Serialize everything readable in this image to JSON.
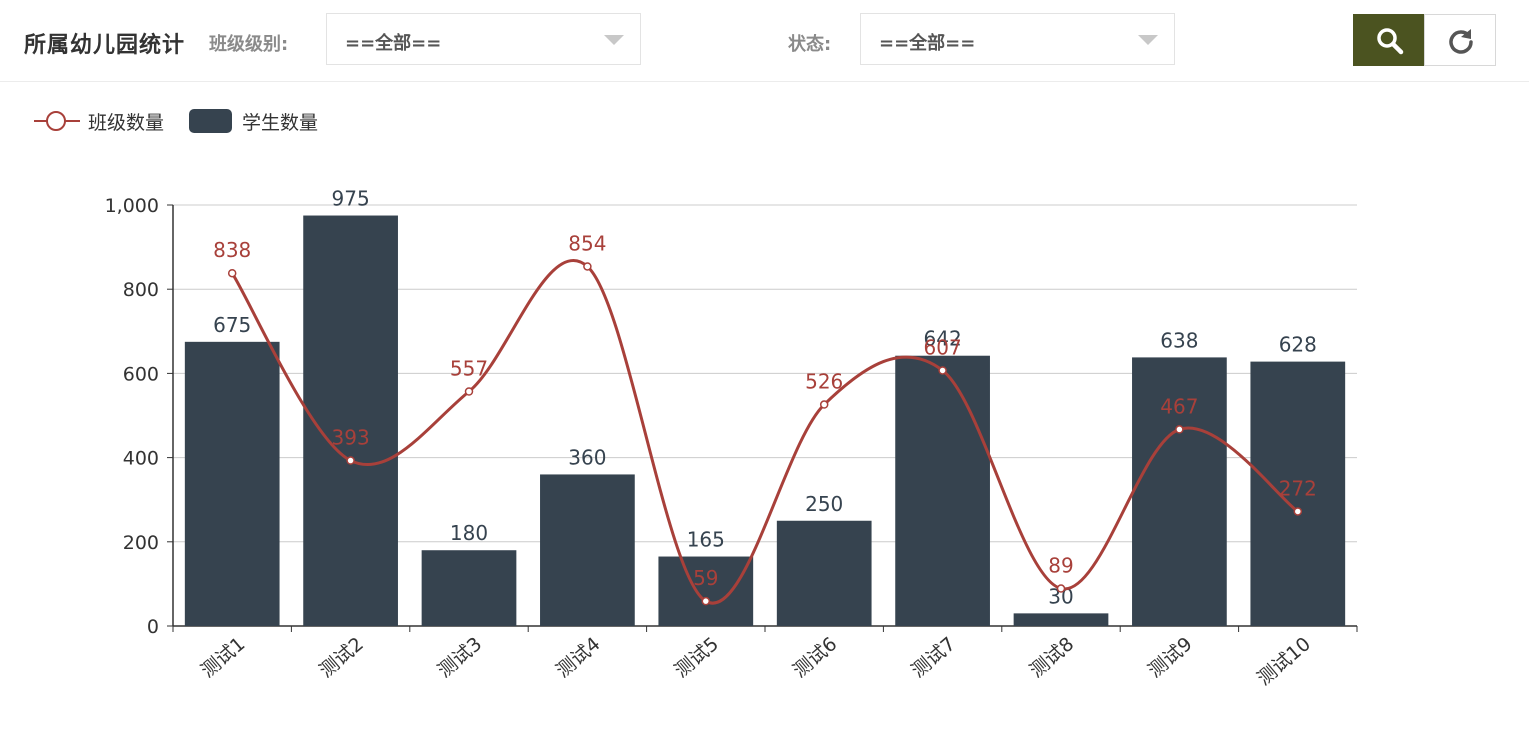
{
  "header": {
    "title": "所属幼儿园统计",
    "level_label": "班级级别:",
    "level_value": "==全部==",
    "status_label": "状态:",
    "status_value": "==全部=="
  },
  "buttons": {
    "search_icon": "search-icon",
    "refresh_icon": "refresh-icon"
  },
  "colors": {
    "bar": "#36434f",
    "line": "#a8403a",
    "search_button": "#4b5320"
  },
  "chart_data": {
    "type": "bar",
    "categories": [
      "测试1",
      "测试2",
      "测试3",
      "测试4",
      "测试5",
      "测试6",
      "测试7",
      "测试8",
      "测试9",
      "测试10"
    ],
    "series": [
      {
        "name": "学生数量",
        "type": "bar",
        "values": [
          675,
          975,
          180,
          360,
          165,
          250,
          642,
          30,
          638,
          628
        ]
      },
      {
        "name": "班级数量",
        "type": "line",
        "smooth": true,
        "values": [
          838,
          393,
          557,
          854,
          59,
          526,
          607,
          89,
          467,
          272
        ]
      }
    ],
    "y_ticks": [
      "0",
      "200",
      "400",
      "600",
      "800",
      "1,000"
    ],
    "ylim": [
      0,
      1000
    ],
    "grid": true,
    "legend_position": "top-left",
    "data_labels": true
  }
}
